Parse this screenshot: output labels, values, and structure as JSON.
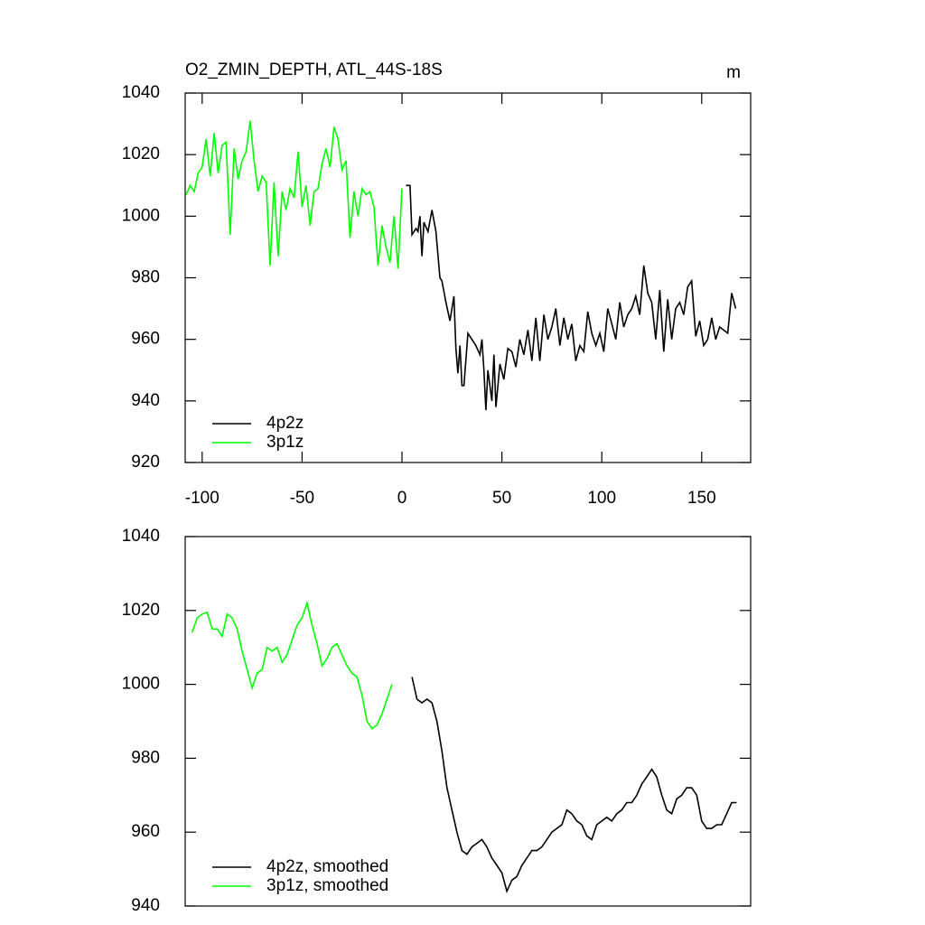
{
  "chart_data": [
    {
      "type": "line",
      "title": "O2_ZMIN_DEPTH, ATL_44S-18S",
      "units": "m",
      "xlim": [
        -108.5,
        174.5
      ],
      "xticks": [
        -100,
        -50,
        0,
        50,
        100,
        150
      ],
      "ylim": [
        920,
        1040
      ],
      "yticks": [
        920,
        940,
        960,
        980,
        1000,
        1020,
        1040
      ],
      "legend": "lower left",
      "series": [
        {
          "name": "4p2z",
          "color": "#000000",
          "x": [
            2,
            4,
            5,
            7,
            8,
            9,
            10,
            11,
            13,
            15,
            17,
            19,
            20,
            22,
            24,
            26,
            27,
            28,
            29,
            30,
            31,
            33,
            35,
            37,
            39,
            40,
            41,
            42,
            43,
            45,
            46,
            47,
            49,
            51,
            53,
            55,
            57,
            59,
            61,
            63,
            65,
            67,
            69,
            71,
            73,
            75,
            77,
            79,
            81,
            83,
            85,
            87,
            89,
            91,
            93,
            95,
            97,
            99,
            101,
            103,
            105,
            107,
            109,
            111,
            113,
            115,
            117,
            119,
            121,
            123,
            125,
            127,
            129,
            131,
            133,
            135,
            137,
            139,
            141,
            143,
            145,
            147,
            149,
            151,
            153,
            155,
            157,
            159,
            161,
            163,
            165,
            167
          ],
          "values": [
            1010,
            1010,
            994,
            996,
            995,
            1000,
            987,
            998,
            995,
            1002,
            995,
            980,
            979,
            972,
            966,
            974,
            957,
            949,
            958,
            945,
            945,
            962,
            960,
            958,
            955,
            960,
            950,
            937,
            950,
            940,
            955,
            938,
            952,
            947,
            957,
            956,
            951,
            960,
            955,
            963,
            953,
            967,
            953,
            968,
            960,
            964,
            970,
            958,
            967,
            960,
            965,
            953,
            958,
            956,
            969,
            962,
            958,
            962,
            956,
            970,
            965,
            960,
            972,
            964,
            968,
            970,
            974,
            968,
            984,
            975,
            972,
            960,
            976,
            956,
            973,
            960,
            970,
            972,
            968,
            977,
            979,
            961,
            966,
            958,
            960,
            967,
            960,
            964,
            963,
            962,
            975,
            970
          ]
        },
        {
          "name": "3p1z",
          "color": "#00ff00",
          "x": [
            -108,
            -106,
            -104,
            -102,
            -100,
            -98,
            -96,
            -94,
            -92,
            -90,
            -88,
            -86,
            -84,
            -82,
            -80,
            -78,
            -76,
            -74,
            -72,
            -70,
            -68,
            -66,
            -64,
            -62,
            -60,
            -58,
            -56,
            -54,
            -52,
            -50,
            -48,
            -46,
            -44,
            -42,
            -40,
            -38,
            -36,
            -34,
            -32,
            -30,
            -28,
            -26,
            -24,
            -22,
            -20,
            -18,
            -16,
            -14,
            -12,
            -10,
            -8,
            -6,
            -4,
            -2,
            0
          ],
          "values": [
            1007,
            1010,
            1008,
            1014,
            1016,
            1025,
            1013,
            1027,
            1014,
            1023,
            1024,
            994,
            1022,
            1012,
            1018,
            1021,
            1031,
            1018,
            1008,
            1013,
            1011,
            984,
            1011,
            987,
            1008,
            1002,
            1009,
            1006,
            1021,
            1003,
            1010,
            997,
            1008,
            1009,
            1017,
            1022,
            1016,
            1029,
            1025,
            1015,
            1018,
            993,
            1008,
            1000,
            1009,
            1007,
            1008,
            1003,
            984,
            997,
            990,
            985,
            1000,
            983,
            1009
          ]
        }
      ]
    },
    {
      "type": "line",
      "xlim": [
        -108.5,
        174.5
      ],
      "ylim": [
        940,
        1040
      ],
      "yticks": [
        940,
        960,
        980,
        1000,
        1020,
        1040
      ],
      "legend": "lower left",
      "series": [
        {
          "name": "4p2z, smoothed",
          "color": "#000000",
          "x": [
            5,
            7.5,
            10,
            12.5,
            15,
            17.5,
            20,
            22.5,
            25,
            27.5,
            30,
            32.5,
            35,
            37.5,
            40,
            42.5,
            45,
            47.5,
            50,
            52.5,
            55,
            57.5,
            60,
            62.5,
            65,
            67.5,
            70,
            72.5,
            75,
            77.5,
            80,
            82.5,
            85,
            87.5,
            90,
            92.5,
            95,
            97.5,
            100,
            102.5,
            105,
            107.5,
            110,
            112.5,
            115,
            117.5,
            120,
            122.5,
            125,
            127.5,
            130,
            132.5,
            135,
            137.5,
            140,
            142.5,
            145,
            147.5,
            150,
            152.5,
            155,
            157.5,
            160,
            162.5,
            165,
            167.5
          ],
          "values": [
            1002,
            996,
            995,
            996,
            995,
            990,
            982,
            972,
            966,
            960,
            955,
            954,
            956,
            957,
            958,
            956,
            953,
            951,
            949,
            944,
            947,
            948,
            951,
            953,
            955,
            955,
            956,
            958,
            960,
            961,
            962,
            966,
            965,
            963,
            962,
            959,
            958,
            962,
            963,
            964,
            963,
            965,
            966,
            968,
            968,
            970,
            973,
            975,
            977,
            975,
            970,
            966,
            965,
            969,
            970,
            972,
            972,
            970,
            963,
            961,
            961,
            962,
            962,
            965,
            968,
            968
          ]
        },
        {
          "name": "3p1z, smoothed",
          "color": "#00ff00",
          "x": [
            -105,
            -102.5,
            -100,
            -97.5,
            -95,
            -92.5,
            -90,
            -87.5,
            -85,
            -82.5,
            -80,
            -77.5,
            -75,
            -72.5,
            -70,
            -67.5,
            -65,
            -62.5,
            -60,
            -57.5,
            -55,
            -52.5,
            -50,
            -47.5,
            -45,
            -42.5,
            -40,
            -37.5,
            -35,
            -32.5,
            -30,
            -27.5,
            -25,
            -22.5,
            -20,
            -17.5,
            -15,
            -12.5,
            -10,
            -7.5,
            -5
          ],
          "values": [
            1014,
            1018,
            1019,
            1019.5,
            1015,
            1015,
            1013,
            1019,
            1018,
            1015,
            1009,
            1004,
            999,
            1003,
            1004,
            1010,
            1009,
            1010,
            1006,
            1008,
            1012,
            1016,
            1018,
            1022,
            1016,
            1011,
            1005,
            1007,
            1010,
            1011,
            1008,
            1005,
            1003,
            1002,
            997,
            990,
            988,
            989,
            992,
            996,
            1000
          ]
        }
      ]
    }
  ]
}
